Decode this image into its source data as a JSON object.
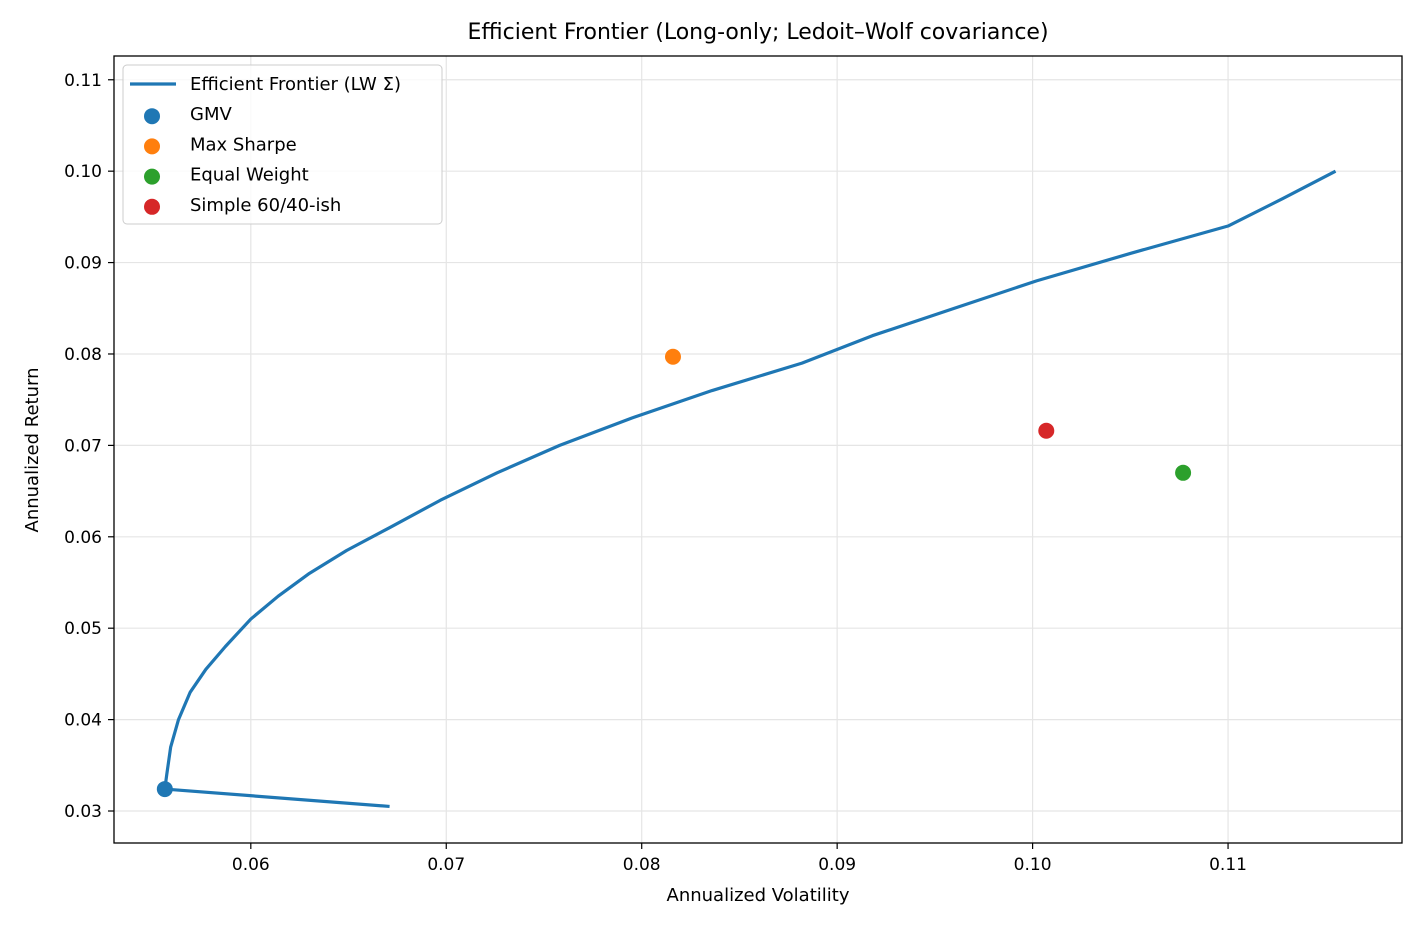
{
  "chart_data": {
    "type": "line",
    "title": "Efficient Frontier (Long-only; Ledoit–Wolf covariance)",
    "xlabel": "Annualized Volatility",
    "ylabel": "Annualized Return",
    "xlim": [
      0.053,
      0.1189
    ],
    "ylim": [
      0.0265,
      0.1126
    ],
    "xticks": [
      "0.06",
      "0.07",
      "0.08",
      "0.09",
      "0.10",
      "0.11"
    ],
    "yticks": [
      "0.03",
      "0.04",
      "0.05",
      "0.06",
      "0.07",
      "0.08",
      "0.09",
      "0.10",
      "0.11"
    ],
    "grid": true,
    "legend_position": "upper left",
    "series": [
      {
        "name": "Efficient Frontier (LW Σ)",
        "type": "line",
        "color": "#1f77b4",
        "x": [
          0.0671,
          0.0556,
          0.0557,
          0.0559,
          0.0563,
          0.0569,
          0.0577,
          0.0587,
          0.06,
          0.0614,
          0.063,
          0.0649,
          0.0671,
          0.0697,
          0.0726,
          0.0758,
          0.0795,
          0.0836,
          0.0882,
          0.0918,
          0.096,
          0.1002,
          0.105,
          0.11,
          0.1128,
          0.1155
        ],
        "y": [
          0.0305,
          0.0324,
          0.034,
          0.037,
          0.04,
          0.043,
          0.0455,
          0.048,
          0.051,
          0.0535,
          0.056,
          0.0585,
          0.061,
          0.064,
          0.067,
          0.07,
          0.073,
          0.076,
          0.079,
          0.082,
          0.085,
          0.088,
          0.091,
          0.094,
          0.097,
          0.1
        ]
      },
      {
        "name": "GMV",
        "type": "scatter",
        "color": "#1f77b4",
        "x": [
          0.0556
        ],
        "y": [
          0.0324
        ]
      },
      {
        "name": "Max Sharpe",
        "type": "scatter",
        "color": "#ff7f0e",
        "x": [
          0.0816
        ],
        "y": [
          0.0797
        ]
      },
      {
        "name": "Equal Weight",
        "type": "scatter",
        "color": "#2ca02c",
        "x": [
          0.1077
        ],
        "y": [
          0.067
        ]
      },
      {
        "name": "Simple 60/40-ish",
        "type": "scatter",
        "color": "#d62728",
        "x": [
          0.1007
        ],
        "y": [
          0.0716
        ]
      }
    ]
  }
}
